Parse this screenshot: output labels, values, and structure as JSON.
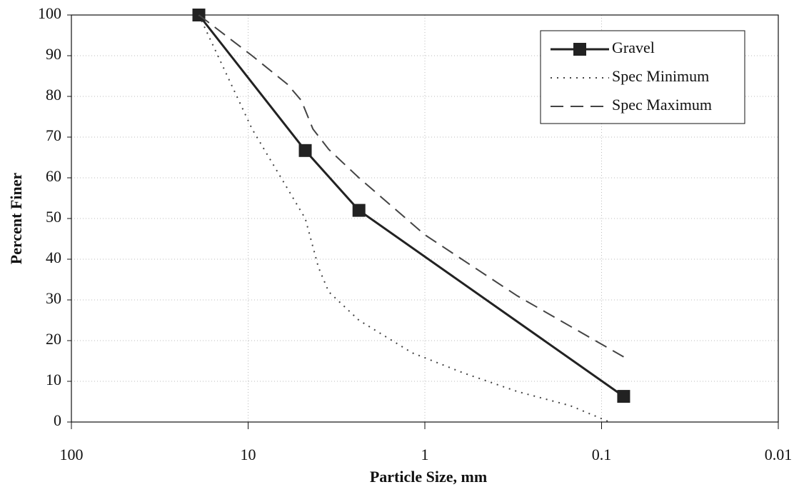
{
  "chart_data": {
    "type": "line",
    "x_label": "Particle Size, mm",
    "y_label": "Percent Finer",
    "xlim": [
      100,
      0.01
    ],
    "xticks": [
      100,
      10,
      1,
      0.1,
      0.01
    ],
    "x_log": true,
    "ylim": [
      0,
      100
    ],
    "yticks": [
      0,
      10,
      20,
      30,
      40,
      50,
      60,
      70,
      80,
      90,
      100
    ],
    "grid": true,
    "legend": "upper right",
    "series": [
      {
        "name": "Gravel",
        "color": "#222222",
        "dash": "solid",
        "marker": "square",
        "x": [
          19,
          4.75,
          2.36,
          0.075
        ],
        "values": [
          100,
          66.7,
          52,
          6.3
        ]
      },
      {
        "name": "Spec Minimum",
        "color": "#444444",
        "dash": "dotted",
        "marker": "none",
        "x": [
          19,
          9.5,
          4.75,
          4,
          3.5,
          2.36,
          1.18,
          0.6,
          0.3,
          0.15,
          0.09
        ],
        "values": [
          100,
          72,
          50,
          38,
          32,
          25,
          17,
          12,
          7.5,
          4,
          0
        ]
      },
      {
        "name": "Spec Maximum",
        "color": "#444444",
        "dash": "dashed",
        "marker": "none",
        "x": [
          19,
          9.5,
          6,
          5,
          4.3,
          3.5,
          2.36,
          1,
          0.3,
          0.075
        ],
        "values": [
          100,
          90,
          83,
          79,
          72,
          67,
          60,
          46,
          31,
          16
        ]
      }
    ]
  }
}
